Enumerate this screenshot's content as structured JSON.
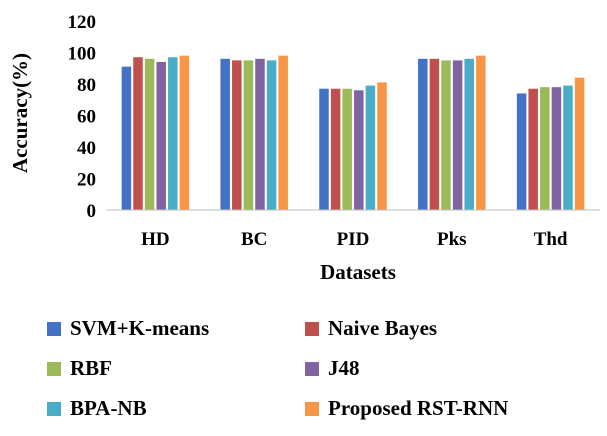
{
  "chart_data": {
    "type": "bar",
    "title": "",
    "xlabel": "Datasets",
    "ylabel": "Accuracy(%)",
    "ylim": [
      0,
      120
    ],
    "yticks": [
      0,
      20,
      40,
      60,
      80,
      100,
      120
    ],
    "grid": false,
    "legend_position": "bottom",
    "categories": [
      "HD",
      "BC",
      "PID",
      "Pks",
      "Thd"
    ],
    "series": [
      {
        "name": "SVM+K-means",
        "color": "#4472C4",
        "values": [
          91,
          96,
          77,
          96,
          74
        ]
      },
      {
        "name": "Naive Bayes",
        "color": "#C0504D",
        "values": [
          97,
          95,
          77,
          96,
          77
        ]
      },
      {
        "name": "RBF",
        "color": "#9BBB59",
        "values": [
          96,
          95,
          77,
          95,
          78
        ]
      },
      {
        "name": "J48",
        "color": "#8064A2",
        "values": [
          94,
          96,
          76,
          95,
          78
        ]
      },
      {
        "name": "BPA-NB",
        "color": "#4BACC6",
        "values": [
          97,
          95,
          79,
          96,
          79
        ]
      },
      {
        "name": "Proposed RST-RNN",
        "color": "#F79646",
        "values": [
          98,
          98,
          81,
          98,
          84
        ]
      }
    ]
  }
}
